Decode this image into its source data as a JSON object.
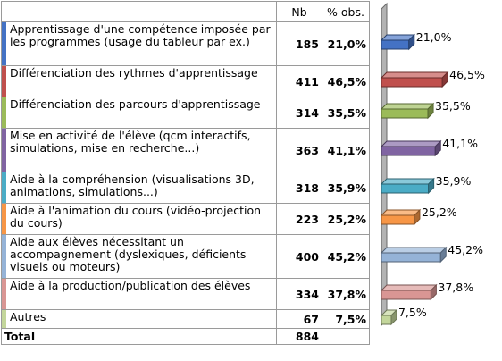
{
  "table": {
    "headers": {
      "label": "",
      "nb": "Nb",
      "pct": "% obs."
    },
    "rows": [
      {
        "label": "Apprentissage d'une compétence imposée par les programmes (usage du tableur par ex.)",
        "nb": "185",
        "pct": "21,0%",
        "color": "#4472c4"
      },
      {
        "label": "Différenciation des rythmes d'apprentissage",
        "nb": "411",
        "pct": "46,5%",
        "color": "#c0504d"
      },
      {
        "label": "Différenciation des parcours d'apprentissage",
        "nb": "314",
        "pct": "35,5%",
        "color": "#9bbb59"
      },
      {
        "label": "Mise en activité de l'élève (qcm interactifs, simulations, mise en recherche...)",
        "nb": "363",
        "pct": "41,1%",
        "color": "#8064a2"
      },
      {
        "label": "Aide à la compréhension (visualisations 3D, animations, simulations...)",
        "nb": "318",
        "pct": "35,9%",
        "color": "#4bacc6"
      },
      {
        "label": "Aide à l'animation du cours (vidéo-projection du cours)",
        "nb": "223",
        "pct": "25,2%",
        "color": "#f79646"
      },
      {
        "label": "Aide aux élèves nécessitant un accompagnement (dyslexiques, déficients visuels ou moteurs)",
        "nb": "400",
        "pct": "45,2%",
        "color": "#95b3d7"
      },
      {
        "label": "Aide à la production/publication des élèves",
        "nb": "334",
        "pct": "37,8%",
        "color": "#d99694"
      },
      {
        "label": "Autres",
        "nb": "67",
        "pct": "7,5%",
        "color": "#c3d69b"
      }
    ],
    "total": {
      "label": "Total",
      "nb": "884"
    }
  },
  "chart_data": {
    "type": "bar",
    "orientation": "horizontal",
    "categories": [
      "Apprentissage d'une compétence imposée par les programmes (usage du tableur par ex.)",
      "Différenciation des rythmes d'apprentissage",
      "Différenciation des parcours d'apprentissage",
      "Mise en activité de l'élève (qcm interactifs, simulations, mise en recherche...)",
      "Aide à la compréhension (visualisations 3D, animations, simulations...)",
      "Aide à l'animation du cours (vidéo-projection du cours)",
      "Aide aux élèves nécessitant un accompagnement (dyslexiques, déficients visuels ou moteurs)",
      "Aide à la production/publication des élèves",
      "Autres"
    ],
    "values": [
      21.0,
      46.5,
      35.5,
      41.1,
      35.9,
      25.2,
      45.2,
      37.8,
      7.5
    ],
    "data_labels": [
      "21,0%",
      "46,5%",
      "35,5%",
      "41,1%",
      "35,9%",
      "25,2%",
      "45,2%",
      "37,8%",
      "7,5%"
    ],
    "colors": [
      "#4472c4",
      "#c0504d",
      "#9bbb59",
      "#8064a2",
      "#4bacc6",
      "#f79646",
      "#95b3d7",
      "#d99694",
      "#c3d69b"
    ],
    "xlim": [
      0,
      50
    ],
    "title": "",
    "xlabel": "",
    "ylabel": "",
    "grid": false,
    "style": "3d"
  }
}
